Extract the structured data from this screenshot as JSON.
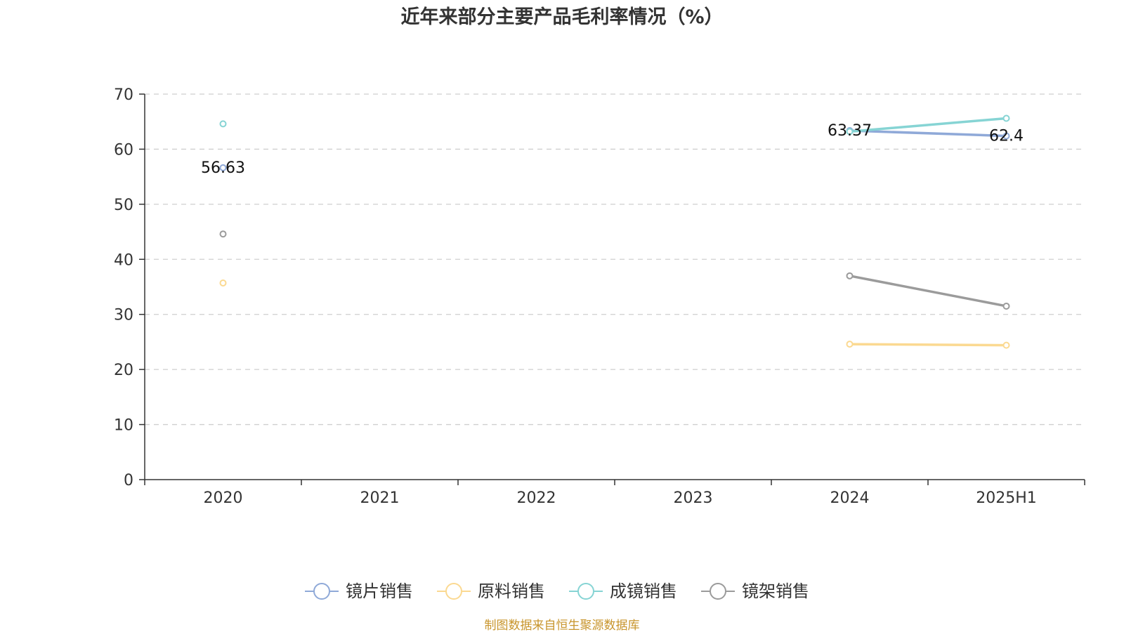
{
  "chart_data": {
    "type": "line",
    "title": "近年来部分主要产品毛利率情况（%）",
    "categories": [
      "2020",
      "2021",
      "2022",
      "2023",
      "2024",
      "2025H1"
    ],
    "ylim": [
      0,
      70
    ],
    "yticks": [
      0,
      10,
      20,
      30,
      40,
      50,
      60,
      70
    ],
    "grid": true,
    "legend_position": "bottom",
    "series": [
      {
        "name": "镜片销售",
        "color": "#8fa9d8",
        "values": [
          56.63,
          null,
          null,
          null,
          63.37,
          62.4
        ],
        "labels": [
          "56.63",
          null,
          null,
          null,
          "63.37",
          "62.4"
        ]
      },
      {
        "name": "原料销售",
        "color": "#fbd991",
        "values": [
          35.7,
          null,
          null,
          null,
          24.6,
          24.4
        ],
        "labels": [
          null,
          null,
          null,
          null,
          null,
          null
        ]
      },
      {
        "name": "成镜销售",
        "color": "#86d4d4",
        "values": [
          64.6,
          null,
          null,
          null,
          63.2,
          65.6
        ],
        "labels": [
          null,
          null,
          null,
          null,
          null,
          null
        ]
      },
      {
        "name": "镜架销售",
        "color": "#9b9b9b",
        "values": [
          44.6,
          null,
          null,
          null,
          37.0,
          31.5
        ],
        "labels": [
          null,
          null,
          null,
          null,
          null,
          null
        ]
      }
    ]
  },
  "source": {
    "text": "制图数据来自恒生聚源数据库",
    "color": "#c8952c"
  }
}
